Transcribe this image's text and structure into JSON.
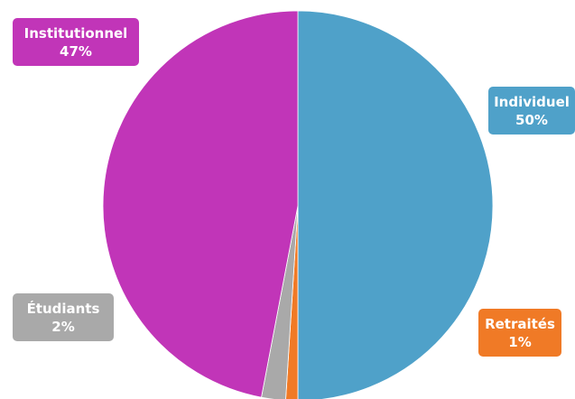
{
  "chart_data": {
    "type": "pie",
    "title": "",
    "slices": [
      {
        "label": "Individuel",
        "value": 50,
        "percent_label": "50%",
        "color": "#4fa1c9"
      },
      {
        "label": "Retraités",
        "value": 1,
        "percent_label": "1%",
        "color": "#f07a26"
      },
      {
        "label": "Étudiants",
        "value": 2,
        "percent_label": "2%",
        "color": "#a9a9a9"
      },
      {
        "label": "Institutionnel",
        "value": 47,
        "percent_label": "47%",
        "color": "#c135b8"
      }
    ],
    "start_angle": "12 o'clock",
    "direction": "clockwise",
    "legend": "none",
    "data_labels": "outside callout boxes"
  }
}
